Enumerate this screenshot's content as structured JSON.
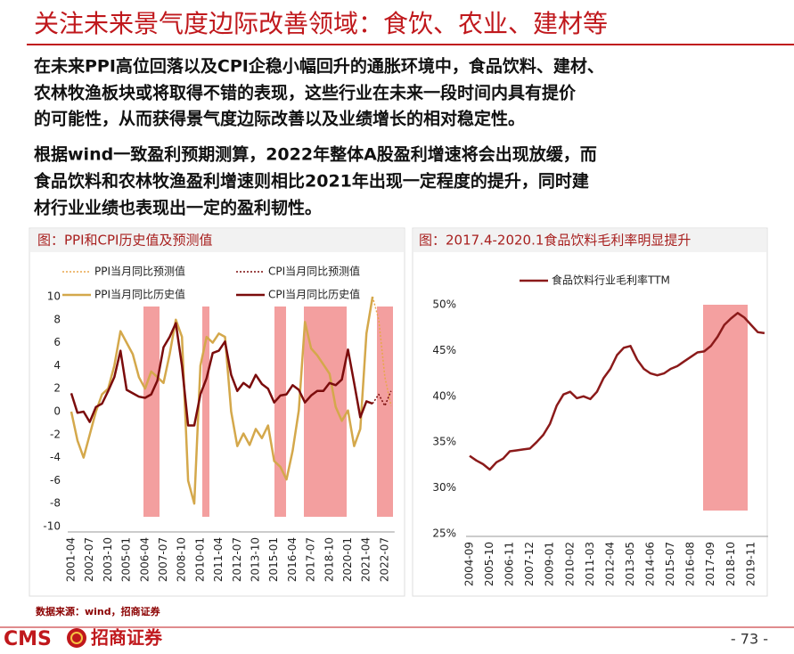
{
  "header": {
    "title": "关注未来景气度边际改善领域：食饮、农业、建材等"
  },
  "paragraphs": [
    [
      "在未来PPI高位回落以及CPI企稳小幅回升的通胀环境中，食品饮料、建材、",
      "农林牧渔板块或将取得不错的表现，这些行业在未来一段时间内具有提价",
      "的可能性，从而获得景气度边际改善以及业绩增长的相对稳定性。"
    ],
    [
      "根据wind一致盈利预期测算，2022年整体A股盈利增速将会出现放缓，而",
      "食品饮料和农林牧渔盈利增速则相比2021年出现一定程度的提升，同时建",
      "材行业业绩也表现出一定的盈利韧性。"
    ]
  ],
  "chart_data": [
    {
      "type": "line",
      "title": "图：PPI和CPI历史值及预测值",
      "categories": [
        "2001-04",
        null,
        null,
        "2002-07",
        null,
        null,
        "2003-10",
        null,
        null,
        "2005-01",
        null,
        null,
        "2006-04",
        null,
        null,
        "2007-07",
        null,
        null,
        "2008-10",
        null,
        null,
        "2010-01",
        null,
        null,
        "2011-04",
        null,
        null,
        "2012-07",
        null,
        null,
        "2013-10",
        null,
        null,
        "2015-01",
        null,
        null,
        "2016-04",
        null,
        null,
        "2017-07",
        null,
        null,
        "2018-10",
        null,
        null,
        "2020-01",
        null,
        null,
        "2021-04",
        null,
        null,
        "2022-07",
        null
      ],
      "series": [
        {
          "name": "PPI当月同比预测值",
          "color": "#e8a64c",
          "style": "dotted",
          "values": [
            null,
            null,
            null,
            null,
            null,
            null,
            null,
            null,
            null,
            null,
            null,
            null,
            null,
            null,
            null,
            null,
            null,
            null,
            null,
            null,
            null,
            null,
            null,
            null,
            null,
            null,
            null,
            null,
            null,
            null,
            null,
            null,
            null,
            null,
            null,
            null,
            null,
            null,
            null,
            null,
            null,
            null,
            null,
            null,
            null,
            null,
            null,
            null,
            null,
            10,
            8,
            3,
            0.5
          ]
        },
        {
          "name": "CPI当月同比预测值",
          "color": "#7b0c0c",
          "style": "dotted",
          "values": [
            null,
            null,
            null,
            null,
            null,
            null,
            null,
            null,
            null,
            null,
            null,
            null,
            null,
            null,
            null,
            null,
            null,
            null,
            null,
            null,
            null,
            null,
            null,
            null,
            null,
            null,
            null,
            null,
            null,
            null,
            null,
            null,
            null,
            null,
            null,
            null,
            null,
            null,
            null,
            null,
            null,
            null,
            null,
            null,
            null,
            null,
            null,
            null,
            null,
            0.7,
            1.5,
            0.5,
            1.8
          ]
        },
        {
          "name": "PPI当月同比历史值",
          "color": "#d4a84b",
          "style": "solid",
          "values": [
            0,
            -2.5,
            -4,
            -2,
            0,
            1.5,
            2,
            4,
            7,
            6,
            5,
            3,
            2,
            3.5,
            3,
            2.5,
            5,
            8,
            6.5,
            -6,
            -8,
            4,
            6.5,
            6,
            6.8,
            6.5,
            0,
            -3,
            -1.9,
            -2.9,
            -1.5,
            -2.3,
            -1.2,
            -4.3,
            -4.8,
            -5.9,
            -3.4,
            0.1,
            7.8,
            5.5,
            4.9,
            4.1,
            3.3,
            0.4,
            -0.8,
            0.1,
            -3,
            -1.5,
            6.8,
            10,
            null,
            null,
            null
          ]
        },
        {
          "name": "CPI当月同比历史值",
          "color": "#7b0c0c",
          "style": "solid",
          "values": [
            1.6,
            -0.1,
            0,
            -0.9,
            0.4,
            0.7,
            1.8,
            3,
            5.3,
            1.9,
            1.6,
            1.3,
            1.2,
            1.5,
            2.7,
            5.6,
            6.5,
            7.7,
            4,
            -1.2,
            -1.2,
            1.5,
            2.9,
            5.1,
            5.3,
            6.1,
            3.2,
            1.8,
            2.5,
            2.1,
            3.2,
            2.4,
            2,
            0.8,
            1.4,
            1.5,
            2.3,
            1.9,
            0.8,
            1.4,
            1.8,
            1.8,
            2.5,
            2.3,
            2.8,
            5.4,
            2.5,
            -0.5,
            0.9,
            0.7,
            null,
            null,
            null
          ]
        }
      ],
      "ylim": [
        -10,
        10
      ],
      "yticks": [
        -10,
        -8,
        -6,
        -4,
        -2,
        0,
        2,
        4,
        6,
        8,
        10
      ],
      "grid": false
    },
    {
      "type": "line",
      "title": "图：2017.4-2020.1食品饮料毛利率明显提升",
      "categories": [
        "2004-09",
        null,
        null,
        "2005-10",
        null,
        null,
        "2006-11",
        null,
        null,
        "2007-12",
        null,
        null,
        "2009-01",
        null,
        null,
        "2010-02",
        null,
        null,
        "2011-03",
        null,
        null,
        "2012-04",
        null,
        null,
        "2013-05",
        null,
        null,
        "2014-06",
        null,
        null,
        "2015-07",
        null,
        null,
        "2016-08",
        null,
        null,
        "2017-09",
        null,
        null,
        "2018-10",
        null,
        null,
        "2019-11",
        null,
        null
      ],
      "series": [
        {
          "name": "食品饮料行业毛利率TTM",
          "color": "#8b1a1a",
          "style": "solid",
          "values": [
            33.5,
            33,
            32.6,
            32,
            32.8,
            33.2,
            34,
            34.1,
            34.2,
            34.3,
            35,
            35.8,
            37,
            39,
            40.2,
            40.5,
            39.8,
            40,
            39.7,
            40.5,
            42,
            43,
            44.5,
            45.3,
            45.5,
            44,
            43,
            42.5,
            42.3,
            42.5,
            43,
            43.3,
            43.8,
            44.3,
            44.8,
            44.9,
            45.5,
            46.5,
            47.8,
            48.5,
            49.1,
            48.6,
            47.8,
            47,
            46.9
          ]
        }
      ],
      "ylim": [
        25,
        50
      ],
      "yticks": [
        {
          "value": 25,
          "label": "25%"
        },
        {
          "value": 30,
          "label": "30%"
        },
        {
          "value": 35,
          "label": "35%"
        },
        {
          "value": 40,
          "label": "40%"
        },
        {
          "value": 45,
          "label": "45%"
        },
        {
          "value": 50,
          "label": "50%"
        }
      ],
      "grid": false
    }
  ],
  "footer": {
    "source": "数据来源：wind，招商证券",
    "logo": "CMS",
    "logo_cn": "招商证券",
    "page": "- 73 -"
  }
}
